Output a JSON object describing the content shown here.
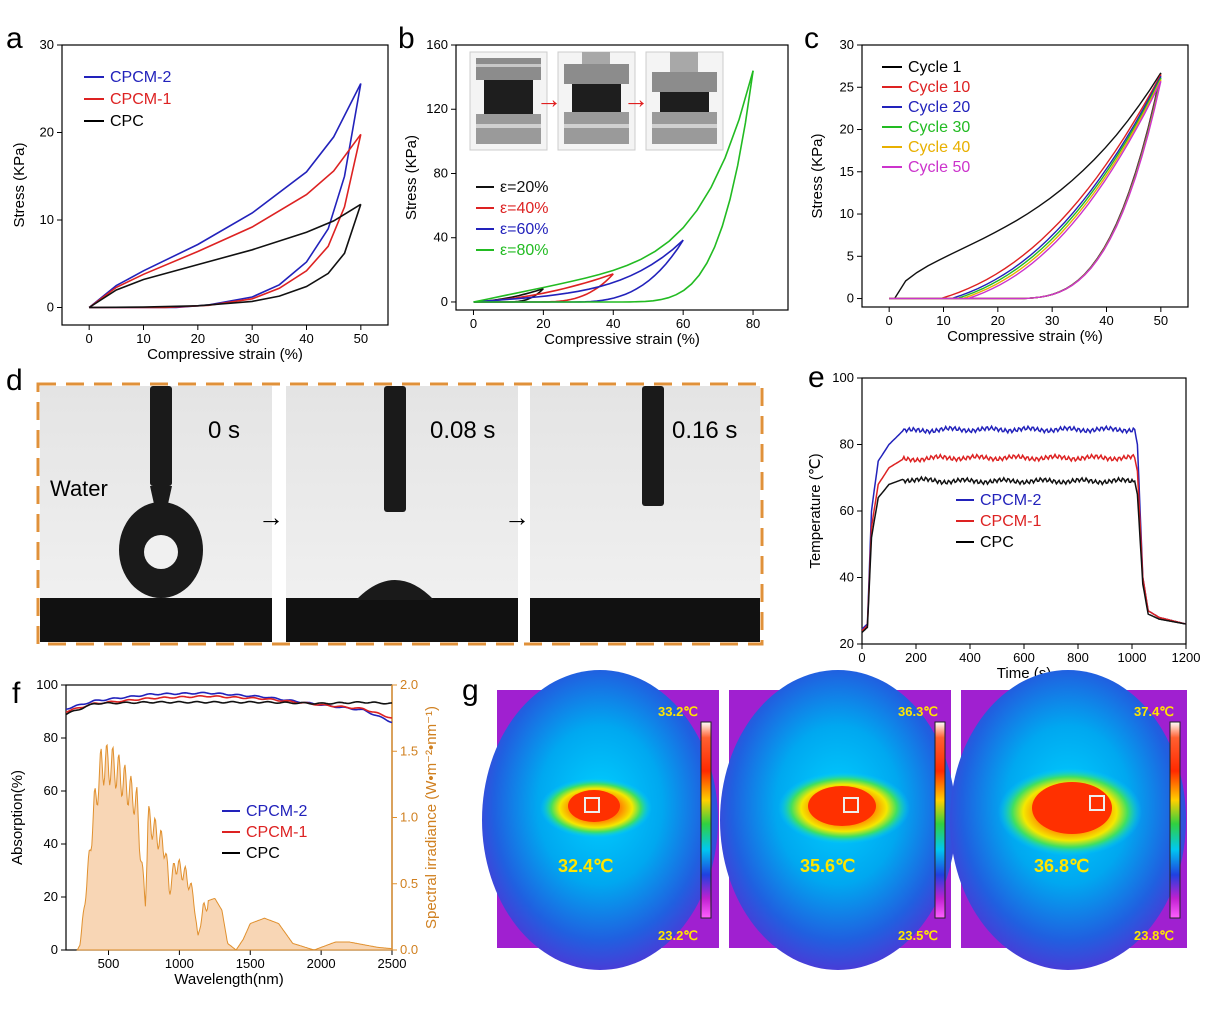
{
  "panel_labels": [
    "a",
    "b",
    "c",
    "d",
    "e",
    "f",
    "g"
  ],
  "chart_data": [
    {
      "panel": "a",
      "type": "line",
      "xlabel": "Compressive strain (%)",
      "ylabel": "Stress (KPa)",
      "xlim": [
        -5,
        55
      ],
      "ylim": [
        -2,
        30
      ],
      "xticks": [
        0,
        10,
        20,
        30,
        40,
        50
      ],
      "yticks": [
        0,
        10,
        20,
        30
      ],
      "legend_position": "top-left",
      "series": [
        {
          "name": "CPCM-2",
          "color": "#2222bb",
          "peak": [
            50,
            25.6
          ],
          "loading": [
            [
              0,
              0
            ],
            [
              5,
              2.5
            ],
            [
              10,
              4.2
            ],
            [
              20,
              7.2
            ],
            [
              30,
              10.8
            ],
            [
              40,
              15.5
            ],
            [
              45,
              19.5
            ],
            [
              50,
              25.6
            ]
          ],
          "unloading": [
            [
              50,
              25.6
            ],
            [
              47,
              15
            ],
            [
              44,
              9
            ],
            [
              40,
              5.2
            ],
            [
              35,
              2.6
            ],
            [
              30,
              1.2
            ],
            [
              22,
              0.3
            ],
            [
              16,
              0
            ],
            [
              0,
              0
            ]
          ]
        },
        {
          "name": "CPCM-1",
          "color": "#dd2222",
          "peak": [
            50,
            19.8
          ],
          "loading": [
            [
              0,
              0
            ],
            [
              5,
              2.3
            ],
            [
              10,
              3.8
            ],
            [
              20,
              6.4
            ],
            [
              30,
              9.2
            ],
            [
              40,
              12.9
            ],
            [
              45,
              15.6
            ],
            [
              50,
              19.8
            ]
          ],
          "unloading": [
            [
              50,
              19.8
            ],
            [
              47,
              11.5
            ],
            [
              44,
              7
            ],
            [
              40,
              4.2
            ],
            [
              35,
              2.2
            ],
            [
              30,
              1.0
            ],
            [
              22,
              0.25
            ],
            [
              14,
              0
            ],
            [
              0,
              0
            ]
          ]
        },
        {
          "name": "CPC",
          "color": "#111111",
          "peak": [
            50,
            11.8
          ],
          "loading": [
            [
              0,
              0
            ],
            [
              5,
              2
            ],
            [
              10,
              3.2
            ],
            [
              20,
              4.9
            ],
            [
              30,
              6.6
            ],
            [
              40,
              8.6
            ],
            [
              45,
              9.9
            ],
            [
              50,
              11.8
            ]
          ],
          "unloading": [
            [
              50,
              11.8
            ],
            [
              47,
              6.2
            ],
            [
              44,
              3.9
            ],
            [
              40,
              2.4
            ],
            [
              35,
              1.3
            ],
            [
              30,
              0.7
            ],
            [
              20,
              0.2
            ],
            [
              10,
              0.05
            ],
            [
              0,
              0
            ]
          ]
        }
      ]
    },
    {
      "panel": "b",
      "type": "line",
      "xlabel": "Compressive strain (%)",
      "ylabel": "Stress (KPa)",
      "xlim": [
        -5,
        90
      ],
      "ylim": [
        -5,
        160
      ],
      "xticks": [
        0,
        20,
        40,
        60,
        80
      ],
      "yticks": [
        0,
        40,
        80,
        120,
        160
      ],
      "legend_position": "middle-left",
      "series": [
        {
          "name": "ε=20%",
          "color": "#111111",
          "peak": [
            20,
            8.3
          ]
        },
        {
          "name": "ε=40%",
          "color": "#dd2222",
          "peak": [
            40,
            17.5
          ]
        },
        {
          "name": "ε=60%",
          "color": "#2222bb",
          "peak": [
            60,
            38.5
          ]
        },
        {
          "name": "ε=80%",
          "color": "#22bb22",
          "peak": [
            80,
            144
          ]
        }
      ]
    },
    {
      "panel": "c",
      "type": "line",
      "xlabel": "Compressive strain (%)",
      "ylabel": "Stress (KPa)",
      "xlim": [
        -5,
        55
      ],
      "ylim": [
        -1,
        30
      ],
      "xticks": [
        0,
        10,
        20,
        30,
        40,
        50
      ],
      "yticks": [
        0,
        5,
        10,
        15,
        20,
        25,
        30
      ],
      "legend_position": "top-left",
      "series": [
        {
          "name": "Cycle 1",
          "color": "#111111",
          "start": 1,
          "peak": 26.7
        },
        {
          "name": "Cycle 10",
          "color": "#dd2222",
          "start": 9.5,
          "peak": 26.5
        },
        {
          "name": "Cycle 20",
          "color": "#2222bb",
          "start": 11.5,
          "peak": 26.3
        },
        {
          "name": "Cycle 30",
          "color": "#22bb22",
          "start": 12.5,
          "peak": 26.1
        },
        {
          "name": "Cycle 40",
          "color": "#e8b000",
          "start": 13.5,
          "peak": 25.9
        },
        {
          "name": "Cycle 50",
          "color": "#cc33cc",
          "start": 14.5,
          "peak": 25.7
        }
      ]
    },
    {
      "panel": "e",
      "type": "line",
      "xlabel": "Time (s)",
      "ylabel": "Temperature (℃)",
      "xlim": [
        0,
        1200
      ],
      "ylim": [
        20,
        100
      ],
      "xticks": [
        0,
        200,
        400,
        600,
        800,
        1000,
        1200
      ],
      "yticks": [
        20,
        40,
        60,
        80,
        100
      ],
      "legend_position": "middle-center",
      "series": [
        {
          "name": "CPCM-2",
          "color": "#2222bb",
          "plateau": 84.5,
          "points": [
            [
              0,
              24.5
            ],
            [
              20,
              26
            ],
            [
              35,
              60
            ],
            [
              60,
              75
            ],
            [
              100,
              80
            ],
            [
              150,
              84
            ],
            [
              300,
              84.5
            ],
            [
              1010,
              84.5
            ],
            [
              1020,
              80
            ],
            [
              1040,
              40
            ],
            [
              1060,
              30
            ],
            [
              1100,
              28
            ],
            [
              1200,
              26
            ]
          ]
        },
        {
          "name": "CPCM-1",
          "color": "#dd2222",
          "plateau": 76,
          "points": [
            [
              0,
              24
            ],
            [
              20,
              25.5
            ],
            [
              35,
              55
            ],
            [
              60,
              68
            ],
            [
              100,
              73
            ],
            [
              150,
              75.5
            ],
            [
              300,
              76
            ],
            [
              1010,
              76
            ],
            [
              1020,
              72
            ],
            [
              1040,
              40
            ],
            [
              1060,
              30
            ],
            [
              1100,
              28
            ],
            [
              1200,
              26
            ]
          ]
        },
        {
          "name": "CPC",
          "color": "#111111",
          "plateau": 69,
          "points": [
            [
              0,
              23.5
            ],
            [
              20,
              25
            ],
            [
              35,
              52
            ],
            [
              60,
              64
            ],
            [
              100,
              68
            ],
            [
              150,
              69.5
            ],
            [
              300,
              69
            ],
            [
              1010,
              69
            ],
            [
              1020,
              65
            ],
            [
              1040,
              38
            ],
            [
              1060,
              29
            ],
            [
              1100,
              27.5
            ],
            [
              1200,
              26
            ]
          ]
        }
      ]
    },
    {
      "panel": "f",
      "type": "line",
      "xlabel": "Wavelength(nm)",
      "ylabel": "Absorption(%)",
      "y2label": "Spectral irradiance (W•m⁻²•nm⁻¹)",
      "xlim": [
        200,
        2500
      ],
      "ylim": [
        0,
        100
      ],
      "y2lim": [
        0,
        2.0
      ],
      "xticks": [
        500,
        1000,
        1500,
        2000,
        2500
      ],
      "yticks": [
        0,
        20,
        40,
        60,
        80,
        100
      ],
      "y2ticks": [
        0.0,
        0.5,
        1.0,
        1.5,
        2.0
      ],
      "legend_position": "middle-center",
      "series": [
        {
          "name": "CPCM-2",
          "color": "#2222bb",
          "points": [
            [
              200,
              91
            ],
            [
              400,
              94
            ],
            [
              800,
              96.5
            ],
            [
              1200,
              97
            ],
            [
              1600,
              95.5
            ],
            [
              2000,
              92.5
            ],
            [
              2300,
              90.5
            ],
            [
              2500,
              86
            ]
          ]
        },
        {
          "name": "CPCM-1",
          "color": "#dd2222",
          "points": [
            [
              200,
              90
            ],
            [
              400,
              93
            ],
            [
              800,
              95
            ],
            [
              1200,
              95.8
            ],
            [
              1600,
              94.8
            ],
            [
              2000,
              92.5
            ],
            [
              2300,
              91
            ],
            [
              2500,
              87.5
            ]
          ]
        },
        {
          "name": "CPC",
          "color": "#111111",
          "points": [
            [
              200,
              89
            ],
            [
              400,
              93
            ],
            [
              800,
              93.5
            ],
            [
              1200,
              93.5
            ],
            [
              1600,
              93.5
            ],
            [
              2000,
              93
            ],
            [
              2300,
              93.5
            ],
            [
              2500,
              93
            ]
          ]
        }
      ],
      "solar_spectrum": {
        "color": "#e0902e",
        "points": [
          [
            280,
            0
          ],
          [
            300,
            0.05
          ],
          [
            350,
            0.6
          ],
          [
            400,
            1.2
          ],
          [
            450,
            1.55
          ],
          [
            500,
            1.56
          ],
          [
            550,
            1.52
          ],
          [
            600,
            1.43
          ],
          [
            650,
            1.33
          ],
          [
            700,
            1.23
          ],
          [
            720,
            0.9
          ],
          [
            760,
            0.4
          ],
          [
            780,
            1.1
          ],
          [
            850,
            0.95
          ],
          [
            900,
            0.85
          ],
          [
            930,
            0.5
          ],
          [
            970,
            0.72
          ],
          [
            1050,
            0.62
          ],
          [
            1100,
            0.45
          ],
          [
            1130,
            0.1
          ],
          [
            1170,
            0.36
          ],
          [
            1250,
            0.39
          ],
          [
            1300,
            0.3
          ],
          [
            1340,
            0.05
          ],
          [
            1400,
            0.0
          ],
          [
            1450,
            0.08
          ],
          [
            1500,
            0.2
          ],
          [
            1600,
            0.24
          ],
          [
            1700,
            0.2
          ],
          [
            1800,
            0.05
          ],
          [
            1950,
            0.0
          ],
          [
            2000,
            0.02
          ],
          [
            2100,
            0.06
          ],
          [
            2200,
            0.06
          ],
          [
            2300,
            0.04
          ],
          [
            2400,
            0.02
          ],
          [
            2500,
            0.01
          ]
        ]
      }
    }
  ],
  "panel_b_arrows": "→",
  "panel_d": {
    "liquid": "Water",
    "times": [
      "0 s",
      "0.08 s",
      "0.16 s"
    ]
  },
  "panel_g": {
    "images": [
      {
        "max": "33.2℃",
        "min": "23.2℃",
        "center": "32.4℃"
      },
      {
        "max": "36.3℃",
        "min": "23.5℃",
        "center": "35.6℃"
      },
      {
        "max": "37.4℃",
        "min": "23.8℃",
        "center": "36.8℃"
      }
    ]
  }
}
